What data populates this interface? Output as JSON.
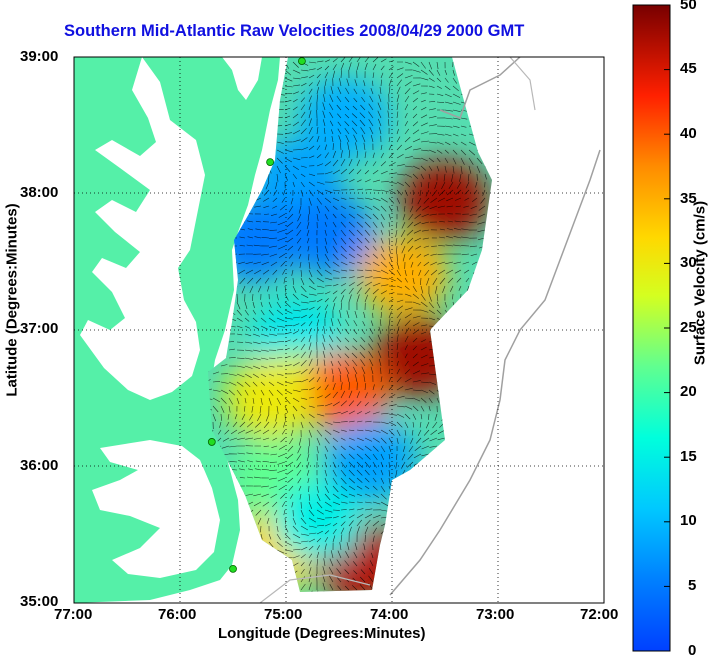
{
  "title": "Southern Mid-Atlantic Raw Velocities 2008/04/29 2000 GMT",
  "x_axis": {
    "label": "Longitude (Degrees:Minutes)",
    "ticks": [
      "77:00",
      "76:00",
      "75:00",
      "74:00",
      "73:00",
      "72:00"
    ]
  },
  "y_axis": {
    "label": "Latitude (Degrees:Minutes)",
    "ticks": [
      "39:00",
      "38:00",
      "37:00",
      "36:00",
      "35:00"
    ]
  },
  "colorbar": {
    "label": "Surface Velocity (cm/s)",
    "ticks": [
      "50",
      "45",
      "40",
      "35",
      "30",
      "25",
      "20",
      "15",
      "10",
      "5",
      "0"
    ],
    "range": [
      0,
      50
    ],
    "colormap": "jet"
  },
  "colors": {
    "land": "#55f0a8",
    "title": "#1010e0",
    "station": "#22dd22"
  },
  "map_data": {
    "lon_range": [
      -77,
      -72
    ],
    "lat_range": [
      35,
      39
    ],
    "velocity_regions": [
      {
        "lon": -74.45,
        "lat": 38.55,
        "speed": 9
      },
      {
        "lon": -74.9,
        "lat": 38.1,
        "speed": 8
      },
      {
        "lon": -75.3,
        "lat": 37.65,
        "speed": 5
      },
      {
        "lon": -74.6,
        "lat": 37.7,
        "speed": 5
      },
      {
        "lon": -73.5,
        "lat": 37.95,
        "speed": 48
      },
      {
        "lon": -73.9,
        "lat": 37.4,
        "speed": 35
      },
      {
        "lon": -73.75,
        "lat": 36.8,
        "speed": 48
      },
      {
        "lon": -74.9,
        "lat": 36.95,
        "speed": 14
      },
      {
        "lon": -74.9,
        "lat": 36.55,
        "speed": 26
      },
      {
        "lon": -74.45,
        "lat": 36.55,
        "speed": 40
      },
      {
        "lon": -75.15,
        "lat": 36.5,
        "speed": 30
      },
      {
        "lon": -74.2,
        "lat": 36.05,
        "speed": 8
      },
      {
        "lon": -75.1,
        "lat": 35.9,
        "speed": 22
      },
      {
        "lon": -75.05,
        "lat": 35.4,
        "speed": 32
      },
      {
        "lon": -74.3,
        "lat": 35.3,
        "speed": 47
      },
      {
        "lon": -74.7,
        "lat": 35.6,
        "speed": 15
      }
    ],
    "stations": [
      {
        "lon": -74.85,
        "lat": 38.97
      },
      {
        "lon": -75.15,
        "lat": 38.23
      },
      {
        "lon": -75.7,
        "lat": 36.18
      },
      {
        "lon": -75.5,
        "lat": 35.25
      }
    ]
  }
}
